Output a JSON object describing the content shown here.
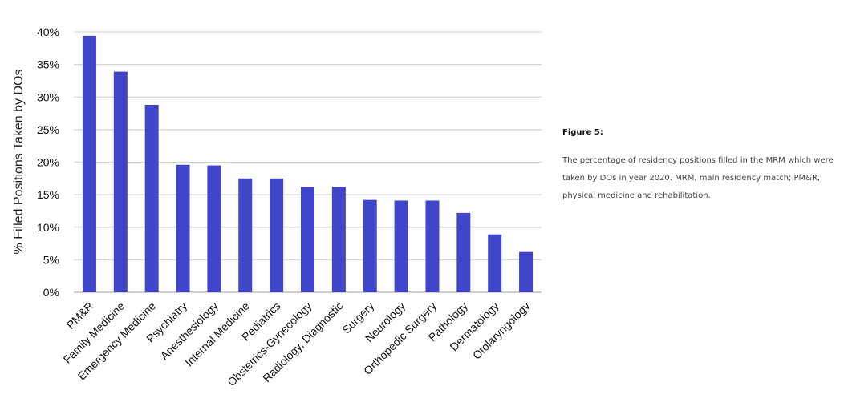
{
  "chart_data": {
    "type": "bar",
    "ylabel": "% Filled Positions Taken by DOs",
    "ylim": [
      0,
      40
    ],
    "yticks": [
      "0%",
      "5%",
      "10%",
      "15%",
      "20%",
      "25%",
      "30%",
      "35%",
      "40%"
    ],
    "grid": true,
    "bar_color": "#4046c9",
    "categories": [
      "PM&R",
      "Family Medicine",
      "Emergency Medicine",
      "Psychiatry",
      "Anesthesiology",
      "Internal Medicine",
      "Pediatrics",
      "Obstetrics-Gynecology",
      "Radiology, Diagnostic",
      "Surgery",
      "Neurology",
      "Orthopedic Surgery",
      "Pathology",
      "Dermatology",
      "Otolaryngology"
    ],
    "values": [
      39.4,
      33.9,
      28.8,
      19.6,
      19.5,
      17.5,
      17.5,
      16.2,
      16.2,
      14.2,
      14.1,
      14.1,
      12.2,
      8.9,
      6.2
    ]
  },
  "caption": {
    "title": "Figure 5:",
    "text": "The percentage of residency positions filled in the MRM which were taken by DOs in year 2020. MRM, main residency  match; PM&R, physical medicine and rehabilitation."
  }
}
